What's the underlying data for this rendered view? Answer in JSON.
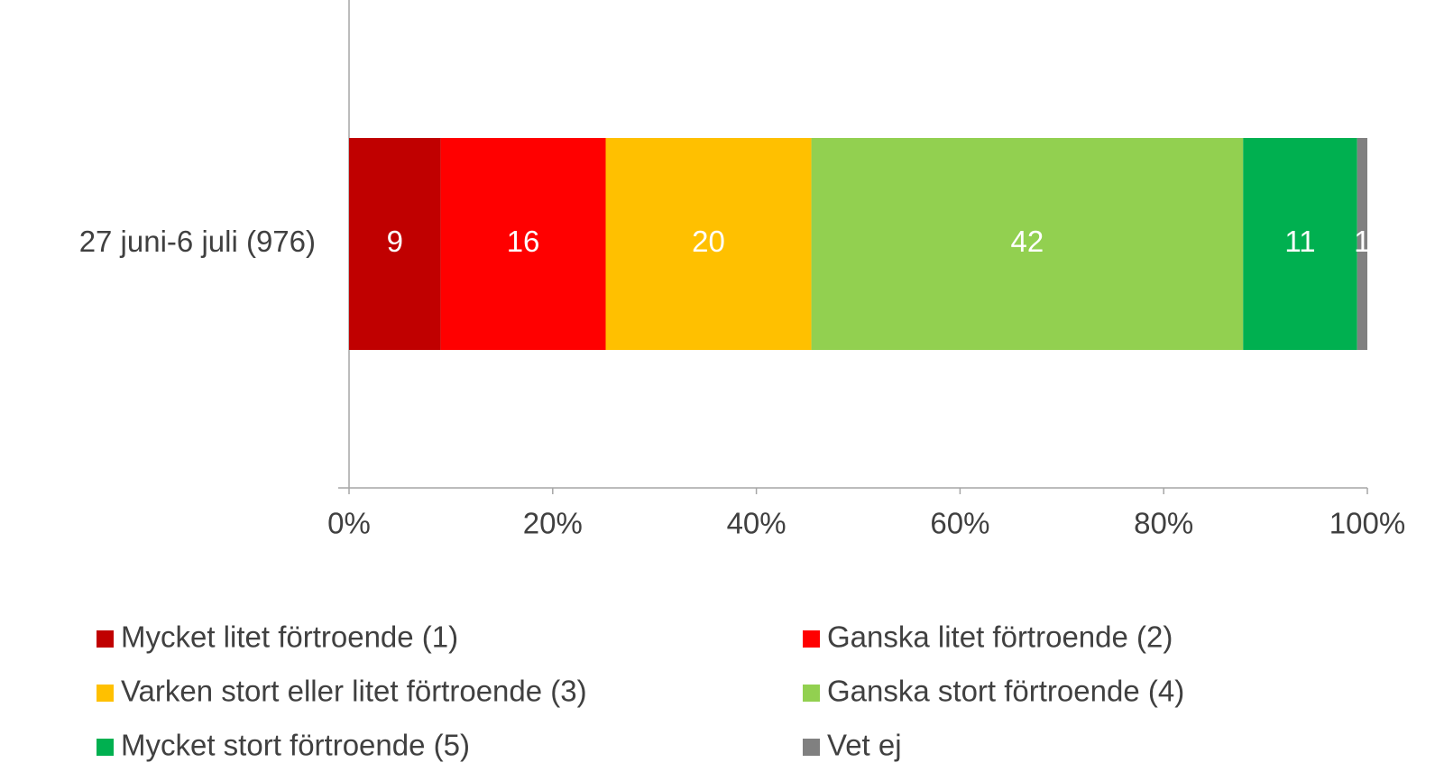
{
  "chart_data": {
    "type": "stacked_barh",
    "categories": [
      "27 juni-6 juli (976)"
    ],
    "series": [
      {
        "name": "Mycket litet förtroende (1)",
        "color": "#c00000",
        "values": [
          9.0
        ],
        "value_labels": [
          "9"
        ]
      },
      {
        "name": "Ganska litet förtroende (2)",
        "color": "#ff0000",
        "values": [
          16.2
        ],
        "value_labels": [
          "16"
        ]
      },
      {
        "name": "Varken stort eller litet förtroende (3)",
        "color": "#ffc000",
        "values": [
          20.2
        ],
        "value_labels": [
          "20"
        ]
      },
      {
        "name": "Ganska stort förtroende (4)",
        "color": "#92d050",
        "values": [
          42.4
        ],
        "value_labels": [
          "42"
        ]
      },
      {
        "name": "Mycket stort förtroende (5)",
        "color": "#00b050",
        "values": [
          11.2
        ],
        "value_labels": [
          "11"
        ]
      },
      {
        "name": "Vet ej",
        "color": "#808080",
        "values": [
          1.0
        ],
        "value_labels": [
          "1"
        ]
      }
    ],
    "xlim": [
      0,
      100
    ],
    "xticks": [
      {
        "value": 0,
        "label": "0%"
      },
      {
        "value": 20,
        "label": "20%"
      },
      {
        "value": 40,
        "label": "40%"
      },
      {
        "value": 60,
        "label": "60%"
      },
      {
        "value": 80,
        "label": "80%"
      },
      {
        "value": 100,
        "label": "100%"
      }
    ],
    "legend": "bottom"
  }
}
